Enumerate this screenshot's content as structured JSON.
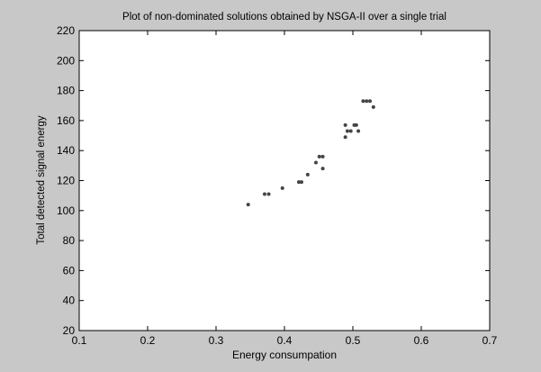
{
  "chart_data": {
    "type": "scatter",
    "title": "Plot of non-dominated solutions obtained by NSGA-II over a single trial",
    "xlabel": "Energy consumpation",
    "ylabel": "Total detected signal energy",
    "xlim": [
      0.1,
      0.7
    ],
    "ylim": [
      20,
      220
    ],
    "xticks": [
      "0.1",
      "0.2",
      "0.3",
      "0.4",
      "0.5",
      "0.6",
      "0.7"
    ],
    "yticks": [
      "20",
      "40",
      "60",
      "80",
      "100",
      "120",
      "140",
      "160",
      "180",
      "200",
      "220"
    ],
    "grid": false,
    "marker_color": "#444444",
    "points": [
      {
        "x": 0.347,
        "y": 104
      },
      {
        "x": 0.371,
        "y": 111
      },
      {
        "x": 0.377,
        "y": 111
      },
      {
        "x": 0.397,
        "y": 115
      },
      {
        "x": 0.421,
        "y": 119
      },
      {
        "x": 0.425,
        "y": 119
      },
      {
        "x": 0.434,
        "y": 124
      },
      {
        "x": 0.446,
        "y": 132
      },
      {
        "x": 0.451,
        "y": 136
      },
      {
        "x": 0.456,
        "y": 136
      },
      {
        "x": 0.456,
        "y": 128
      },
      {
        "x": 0.489,
        "y": 157
      },
      {
        "x": 0.489,
        "y": 149
      },
      {
        "x": 0.492,
        "y": 153
      },
      {
        "x": 0.497,
        "y": 153
      },
      {
        "x": 0.502,
        "y": 157
      },
      {
        "x": 0.505,
        "y": 157
      },
      {
        "x": 0.508,
        "y": 153
      },
      {
        "x": 0.515,
        "y": 173
      },
      {
        "x": 0.52,
        "y": 173
      },
      {
        "x": 0.525,
        "y": 173
      },
      {
        "x": 0.53,
        "y": 169
      }
    ]
  }
}
